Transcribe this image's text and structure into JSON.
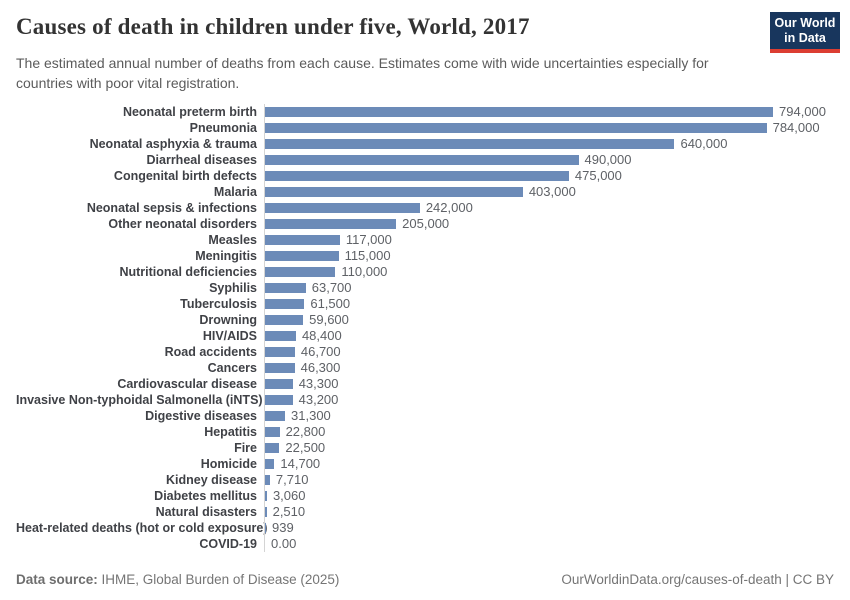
{
  "header": {
    "title": "Causes of death in children under five, World, 2017",
    "subtitle": "The estimated annual number of deaths from each cause. Estimates come with wide uncertainties especially for countries with poor vital registration.",
    "logo": {
      "line1": "Our World",
      "line2": "in Data"
    }
  },
  "chart_data": {
    "type": "bar",
    "orientation": "horizontal",
    "title": "Causes of death in children under five, World, 2017",
    "xlabel": "",
    "ylabel": "",
    "xlim": [
      0,
      794000
    ],
    "grid": false,
    "legend": "none",
    "bar_color": "#6c8bb8",
    "categories": [
      "Neonatal preterm birth",
      "Pneumonia",
      "Neonatal asphyxia & trauma",
      "Diarrheal diseases",
      "Congenital birth defects",
      "Malaria",
      "Neonatal sepsis & infections",
      "Other neonatal disorders",
      "Measles",
      "Meningitis",
      "Nutritional deficiencies",
      "Syphilis",
      "Tuberculosis",
      "Drowning",
      "HIV/AIDS",
      "Road accidents",
      "Cancers",
      "Cardiovascular disease",
      "Invasive Non-typhoidal Salmonella (iNTS)",
      "Digestive diseases",
      "Hepatitis",
      "Fire",
      "Homicide",
      "Kidney disease",
      "Diabetes mellitus",
      "Natural disasters",
      "Heat-related deaths (hot or cold exposure)",
      "COVID-19"
    ],
    "values": [
      794000,
      784000,
      640000,
      490000,
      475000,
      403000,
      242000,
      205000,
      117000,
      115000,
      110000,
      63700,
      61500,
      59600,
      48400,
      46700,
      46300,
      43300,
      43200,
      31300,
      22800,
      22500,
      14700,
      7710,
      3060,
      2510,
      939,
      0
    ],
    "value_labels": [
      "794,000",
      "784,000",
      "640,000",
      "490,000",
      "475,000",
      "403,000",
      "242,000",
      "205,000",
      "117,000",
      "115,000",
      "110,000",
      "63,700",
      "61,500",
      "59,600",
      "48,400",
      "46,700",
      "46,300",
      "43,300",
      "43,200",
      "31,300",
      "22,800",
      "22,500",
      "14,700",
      "7,710",
      "3,060",
      "2,510",
      "939",
      "0.00"
    ]
  },
  "footer": {
    "source_label": "Data source:",
    "source_text": " IHME, Global Burden of Disease (2025)",
    "link_text": "OurWorldinData.org/causes-of-death | CC BY"
  },
  "colors": {
    "bar": "#6c8bb8",
    "axis_line": "#d4d4d4",
    "category_label": "#3f4146",
    "value_label": "#5e6166",
    "logo_bg": "#18365d",
    "logo_stripe": "#dc3e32",
    "title_text": "#333333",
    "subtitle_text": "#5b5b5b",
    "footer_text": "#757575"
  }
}
